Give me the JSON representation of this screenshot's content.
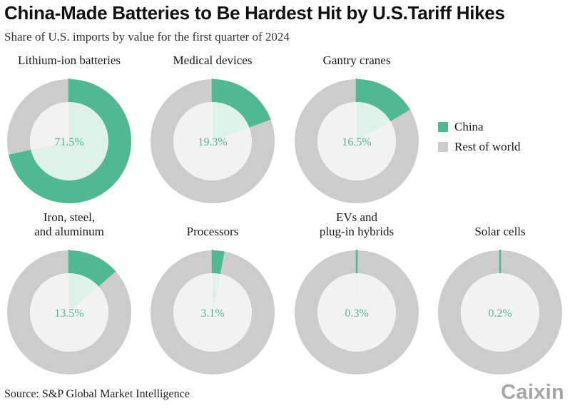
{
  "title": "China-Made Batteries to Be Hardest Hit by U.S.Tariff Hikes",
  "subtitle": "Share of U.S. imports by value for the first quarter of 2024",
  "source": "Source: S&P Global Market Intelligence",
  "logo": "Caixin",
  "colors": {
    "china": "#4fb992",
    "rest": "#cccccc",
    "inner": "#f2f2f2",
    "inner_china": "#def2ea",
    "label": "#4fb992"
  },
  "chart_data": {
    "type": "pie",
    "variant": "donut-small-multiples",
    "legend": {
      "placement": "right",
      "entries": [
        "China",
        "Rest of world"
      ]
    },
    "series_names": [
      "China",
      "Rest of world"
    ],
    "charts": [
      {
        "title": [
          "Lithium-ion batteries"
        ],
        "china": 71.5,
        "rest": 28.5,
        "label": "71.5%"
      },
      {
        "title": [
          "Medical devices"
        ],
        "china": 19.3,
        "rest": 80.7,
        "label": "19.3%"
      },
      {
        "title": [
          "Gantry cranes"
        ],
        "china": 16.5,
        "rest": 83.5,
        "label": "16.5%"
      },
      {
        "title": [
          "Iron, steel,",
          "and aluminum"
        ],
        "china": 13.5,
        "rest": 86.5,
        "label": "13.5%"
      },
      {
        "title": [
          "Processors"
        ],
        "china": 3.1,
        "rest": 96.9,
        "label": "3.1%"
      },
      {
        "title": [
          "EVs and",
          "plug-in hybrids"
        ],
        "china": 0.3,
        "rest": 99.7,
        "label": "0.3%"
      },
      {
        "title": [
          "Solar cells"
        ],
        "china": 0.2,
        "rest": 99.8,
        "label": "0.2%"
      }
    ]
  }
}
